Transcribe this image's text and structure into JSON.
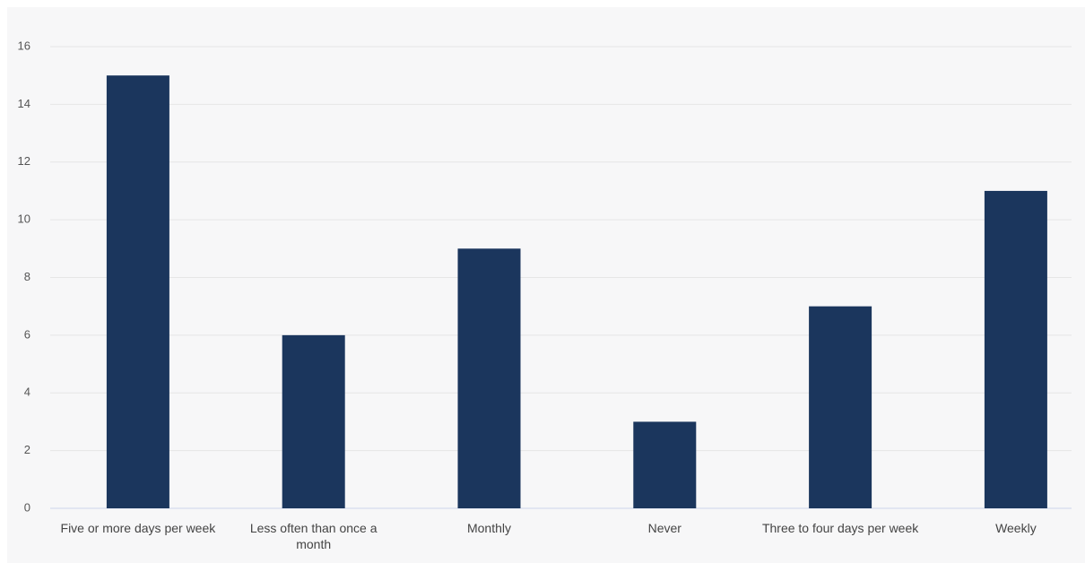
{
  "chart_data": {
    "type": "bar",
    "categories": [
      "Five or more days per week",
      "Less often than once a month",
      "Monthly",
      "Never",
      "Three to four days per week",
      "Weekly"
    ],
    "values": [
      15,
      6,
      9,
      3,
      7,
      11
    ],
    "color": "#1b365d",
    "ylim": [
      0,
      16
    ],
    "yticks": [
      0,
      2,
      4,
      6,
      8,
      10,
      12,
      14,
      16
    ],
    "grid": true
  }
}
